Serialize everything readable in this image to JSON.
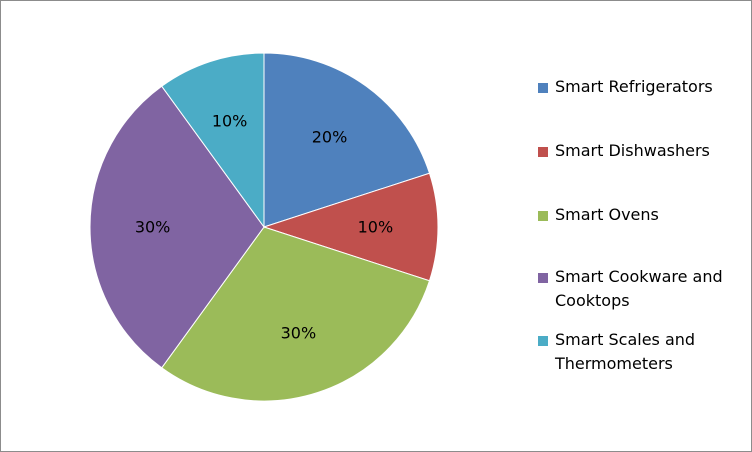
{
  "chart_data": {
    "type": "pie",
    "title": "",
    "categories": [
      "Smart Refrigerators",
      "Smart Dishwashers",
      "Smart Ovens",
      "Smart Cookware and Cooktops",
      "Smart Scales and Thermometers"
    ],
    "values": [
      20,
      10,
      30,
      30,
      10
    ],
    "data_labels": [
      "20%",
      "10%",
      "30%",
      "30%",
      "10%"
    ],
    "colors": [
      "#4F81BD",
      "#C0504D",
      "#9BBB59",
      "#8064A2",
      "#4BACC6"
    ],
    "start_angle": "12 o'clock",
    "direction": "clockwise",
    "legend": {
      "position": "right"
    }
  }
}
